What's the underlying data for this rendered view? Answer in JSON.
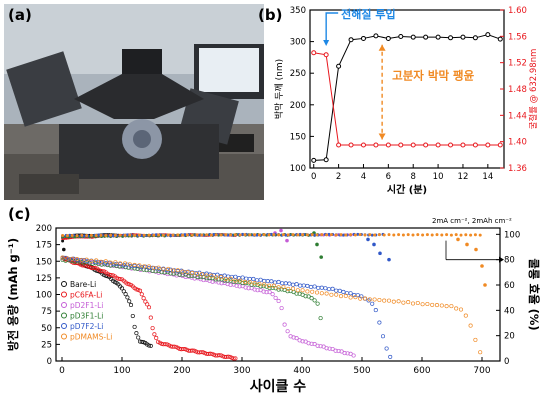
{
  "panel_labels": {
    "a": "(a)",
    "b": "(b)",
    "c": "(c)"
  },
  "photo": {
    "description_icon": "ellipsometer-photo"
  },
  "chart_data": [
    {
      "id": "b",
      "type": "line",
      "xlabel": "시간 (분)",
      "ylabel_left": "박막 두께 (nm)",
      "ylabel_right": "굴절률 @ 632.98nm",
      "xlim": [
        -0.3,
        15.3
      ],
      "ylim_left": [
        100,
        350
      ],
      "ylim_right": [
        1.36,
        1.6
      ],
      "xticks": [
        0,
        2,
        4,
        6,
        8,
        10,
        12,
        14
      ],
      "yticks_left": [
        100,
        150,
        200,
        250,
        300,
        350
      ],
      "yticks_right": [
        1.36,
        1.4,
        1.44,
        1.48,
        1.52,
        1.56,
        1.6
      ],
      "colors": {
        "thickness": "#000000",
        "refractive": "#e8171d",
        "arrow_blue": "#1e88e5",
        "arrow_orange": "#f08a24"
      },
      "annotations": {
        "electrolyte": "전해질 투입",
        "swelling": "고분자 박막 팽윤"
      },
      "series": [
        {
          "axis": "left",
          "x": [
            0,
            1,
            2,
            3,
            4,
            5,
            6,
            7,
            8,
            9,
            10,
            11,
            12,
            13,
            14,
            15
          ],
          "values": [
            112,
            113,
            261,
            303,
            305,
            309,
            305,
            308,
            307,
            307,
            307,
            306,
            307,
            306,
            311,
            304
          ]
        },
        {
          "axis": "right",
          "x": [
            0,
            1,
            2,
            3,
            4,
            5,
            6,
            7,
            8,
            9,
            10,
            11,
            12,
            13,
            14,
            15
          ],
          "values": [
            1.535,
            1.532,
            1.395,
            1.395,
            1.395,
            1.395,
            1.395,
            1.395,
            1.395,
            1.395,
            1.395,
            1.395,
            1.395,
            1.395,
            1.395,
            1.395
          ]
        }
      ]
    },
    {
      "id": "c",
      "type": "scatter",
      "xlabel": "사이클 수",
      "ylabel_left": "방전 용량 (mAh g⁻¹)",
      "ylabel_right": "쿨롱 효율 (%)",
      "xlim": [
        -10,
        730
      ],
      "ylim_left": [
        0,
        200
      ],
      "ylim_right": [
        0,
        105
      ],
      "xticks": [
        0,
        100,
        200,
        300,
        400,
        500,
        600,
        700
      ],
      "yticks_left": [
        0,
        25,
        50,
        75,
        100,
        125,
        150,
        175,
        200
      ],
      "yticks_right": [
        0,
        20,
        40,
        60,
        80,
        100
      ],
      "annotation": "2mA cm⁻², 2mAh cm⁻²",
      "series": [
        {
          "name": "Bare-Li",
          "color": "#111111",
          "capacity": [
            [
              1,
              155
            ],
            [
              20,
              150
            ],
            [
              50,
              140
            ],
            [
              80,
              125
            ],
            [
              100,
              110
            ],
            [
              115,
              85
            ],
            [
              122,
              45
            ],
            [
              130,
              30
            ],
            [
              140,
              26
            ],
            [
              150,
              22
            ]
          ],
          "efficiency": [
            [
              0,
              93
            ],
            [
              2,
              97
            ],
            [
              10,
              99
            ],
            [
              60,
              99.5
            ],
            [
              120,
              99.5
            ]
          ],
          "eff_outliers": [
            [
              3,
              88
            ],
            [
              50,
              98
            ],
            [
              160,
              99
            ]
          ]
        },
        {
          "name": "pC6FA-Li",
          "color": "#e8171d",
          "capacity": [
            [
              1,
              155
            ],
            [
              20,
              148
            ],
            [
              60,
              138
            ],
            [
              100,
              122
            ],
            [
              130,
              105
            ],
            [
              145,
              80
            ],
            [
              152,
              45
            ],
            [
              160,
              28
            ],
            [
              200,
              18
            ],
            [
              250,
              10
            ],
            [
              290,
              4
            ]
          ],
          "efficiency": [
            [
              0,
              97
            ],
            [
              100,
              99.3
            ],
            [
              250,
              99.5
            ],
            [
              290,
              99.5
            ]
          ],
          "eff_outliers": []
        },
        {
          "name": "pD2F1-Li",
          "color": "#c45cd6",
          "capacity": [
            [
              1,
              155
            ],
            [
              100,
              142
            ],
            [
              200,
              128
            ],
            [
              300,
              112
            ],
            [
              350,
              102
            ],
            [
              365,
              85
            ],
            [
              372,
              50
            ],
            [
              380,
              38
            ],
            [
              400,
              30
            ],
            [
              440,
              20
            ],
            [
              490,
              8
            ]
          ],
          "efficiency": [
            [
              0,
              98
            ],
            [
              250,
              99.5
            ],
            [
              490,
              99.6
            ]
          ],
          "eff_outliers": [
            [
              355,
              101
            ],
            [
              365,
              103
            ],
            [
              375,
              95
            ]
          ]
        },
        {
          "name": "pD3F1-Li",
          "color": "#2e7d32",
          "capacity": [
            [
              1,
              152
            ],
            [
              100,
              142
            ],
            [
              200,
              130
            ],
            [
              300,
              118
            ],
            [
              380,
              105
            ],
            [
              410,
              97
            ],
            [
              425,
              90
            ],
            [
              432,
              60
            ]
          ],
          "efficiency": [
            [
              0,
              98
            ],
            [
              250,
              99.6
            ],
            [
              430,
              99.6
            ]
          ],
          "eff_outliers": [
            [
              420,
              101
            ],
            [
              425,
              92
            ],
            [
              432,
              82
            ]
          ]
        },
        {
          "name": "pD7F2-Li",
          "color": "#3158c8",
          "capacity": [
            [
              1,
              155
            ],
            [
              150,
              140
            ],
            [
              300,
              125
            ],
            [
              450,
              108
            ],
            [
              500,
              97
            ],
            [
              520,
              85
            ],
            [
              530,
              55
            ],
            [
              540,
              20
            ],
            [
              548,
              5
            ]
          ],
          "efficiency": [
            [
              0,
              99
            ],
            [
              300,
              99.7
            ],
            [
              540,
              99.7
            ]
          ],
          "eff_outliers": [
            [
              510,
              96
            ],
            [
              520,
              92
            ],
            [
              530,
              85
            ],
            [
              545,
              80
            ]
          ]
        },
        {
          "name": "pDMAMS-Li",
          "color": "#f08a24",
          "capacity": [
            [
              1,
              155
            ],
            [
              100,
              147
            ],
            [
              200,
              135
            ],
            [
              300,
              120
            ],
            [
              400,
              106
            ],
            [
              500,
              94
            ],
            [
              600,
              86
            ],
            [
              650,
              82
            ],
            [
              670,
              75
            ],
            [
              680,
              55
            ],
            [
              690,
              30
            ],
            [
              700,
              5
            ]
          ],
          "efficiency": [
            [
              0,
              99
            ],
            [
              300,
              99.7
            ],
            [
              640,
              99.6
            ],
            [
              700,
              99.5
            ]
          ],
          "eff_outliers": [
            [
              660,
              96
            ],
            [
              675,
              92
            ],
            [
              690,
              88
            ],
            [
              700,
              75
            ],
            [
              705,
              60
            ]
          ]
        }
      ]
    }
  ]
}
